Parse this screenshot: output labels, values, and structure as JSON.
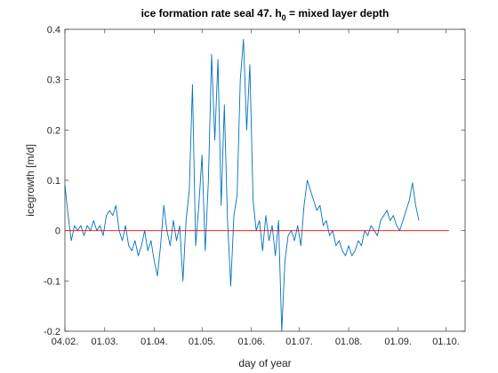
{
  "chart_data": {
    "type": "line",
    "title": [
      "ice formation rate seal 47. h",
      "0",
      " = mixed layer depth"
    ],
    "xlabel": "day of year",
    "ylabel": "icegrowth [m/d]",
    "xlim": [
      35,
      286
    ],
    "ylim": [
      -0.2,
      0.4
    ],
    "xticks": [
      {
        "value": 35,
        "label": "04.02."
      },
      {
        "value": 60,
        "label": "01.03."
      },
      {
        "value": 91,
        "label": "01.04."
      },
      {
        "value": 121,
        "label": "01.05."
      },
      {
        "value": 152,
        "label": "01.06."
      },
      {
        "value": 182,
        "label": "01.07."
      },
      {
        "value": 213,
        "label": "01.08."
      },
      {
        "value": 244,
        "label": "01.09."
      },
      {
        "value": 274,
        "label": "01.10."
      }
    ],
    "yticks": [
      -0.2,
      -0.1,
      0,
      0.1,
      0.2,
      0.3,
      0.4
    ],
    "grid": false,
    "series": [
      {
        "color": "#0072bd",
        "x": [
          35,
          37,
          39,
          41,
          43,
          45,
          47,
          49,
          51,
          53,
          55,
          57,
          59,
          61,
          63,
          65,
          67,
          69,
          71,
          73,
          75,
          77,
          79,
          81,
          83,
          85,
          87,
          89,
          91,
          93,
          95,
          97,
          99,
          101,
          103,
          105,
          107,
          109,
          111,
          113,
          115,
          117,
          119,
          121,
          123,
          125,
          127,
          129,
          131,
          133,
          135,
          137,
          139,
          141,
          143,
          145,
          147,
          149,
          151,
          153,
          155,
          157,
          159,
          161,
          163,
          165,
          167,
          169,
          171,
          173,
          175,
          177,
          179,
          181,
          183,
          185,
          187,
          189,
          191,
          193,
          195,
          197,
          199,
          201,
          203,
          205,
          207,
          209,
          211,
          213,
          215,
          217,
          219,
          221,
          223,
          225,
          227,
          229,
          231,
          233,
          235,
          237,
          239,
          241,
          243,
          245,
          247,
          249,
          251,
          253,
          255,
          257
        ],
        "values": [
          0.09,
          0.03,
          -0.02,
          0.01,
          0.0,
          0.01,
          -0.01,
          0.01,
          0.0,
          0.02,
          0.0,
          0.01,
          -0.01,
          0.03,
          0.04,
          0.03,
          0.05,
          0.0,
          -0.02,
          0.01,
          -0.03,
          -0.04,
          -0.02,
          -0.05,
          -0.03,
          0.0,
          -0.04,
          -0.02,
          -0.06,
          -0.09,
          -0.03,
          0.05,
          0.0,
          -0.03,
          0.02,
          -0.02,
          0.01,
          -0.1,
          0.02,
          0.08,
          0.29,
          -0.03,
          0.05,
          0.15,
          -0.04,
          0.1,
          0.35,
          0.18,
          0.34,
          0.05,
          0.25,
          0.02,
          -0.11,
          0.03,
          0.07,
          0.3,
          0.38,
          0.2,
          0.33,
          0.06,
          0.0,
          0.02,
          -0.04,
          0.03,
          -0.02,
          0.01,
          -0.05,
          0.02,
          -0.2,
          -0.06,
          -0.01,
          0.0,
          -0.02,
          0.01,
          -0.03,
          0.05,
          0.1,
          0.08,
          0.06,
          0.04,
          0.05,
          0.01,
          0.02,
          -0.01,
          0.0,
          -0.03,
          -0.02,
          -0.04,
          -0.05,
          -0.03,
          -0.05,
          -0.04,
          -0.02,
          -0.03,
          0.0,
          -0.01,
          0.01,
          0.0,
          -0.01,
          0.02,
          0.03,
          0.04,
          0.02,
          0.03,
          0.01,
          0.0,
          0.02,
          0.04,
          0.06,
          0.095,
          0.05,
          0.02
        ]
      },
      {
        "color": "#ff0000",
        "x": [
          35,
          276
        ],
        "values": [
          0,
          0
        ]
      }
    ]
  }
}
